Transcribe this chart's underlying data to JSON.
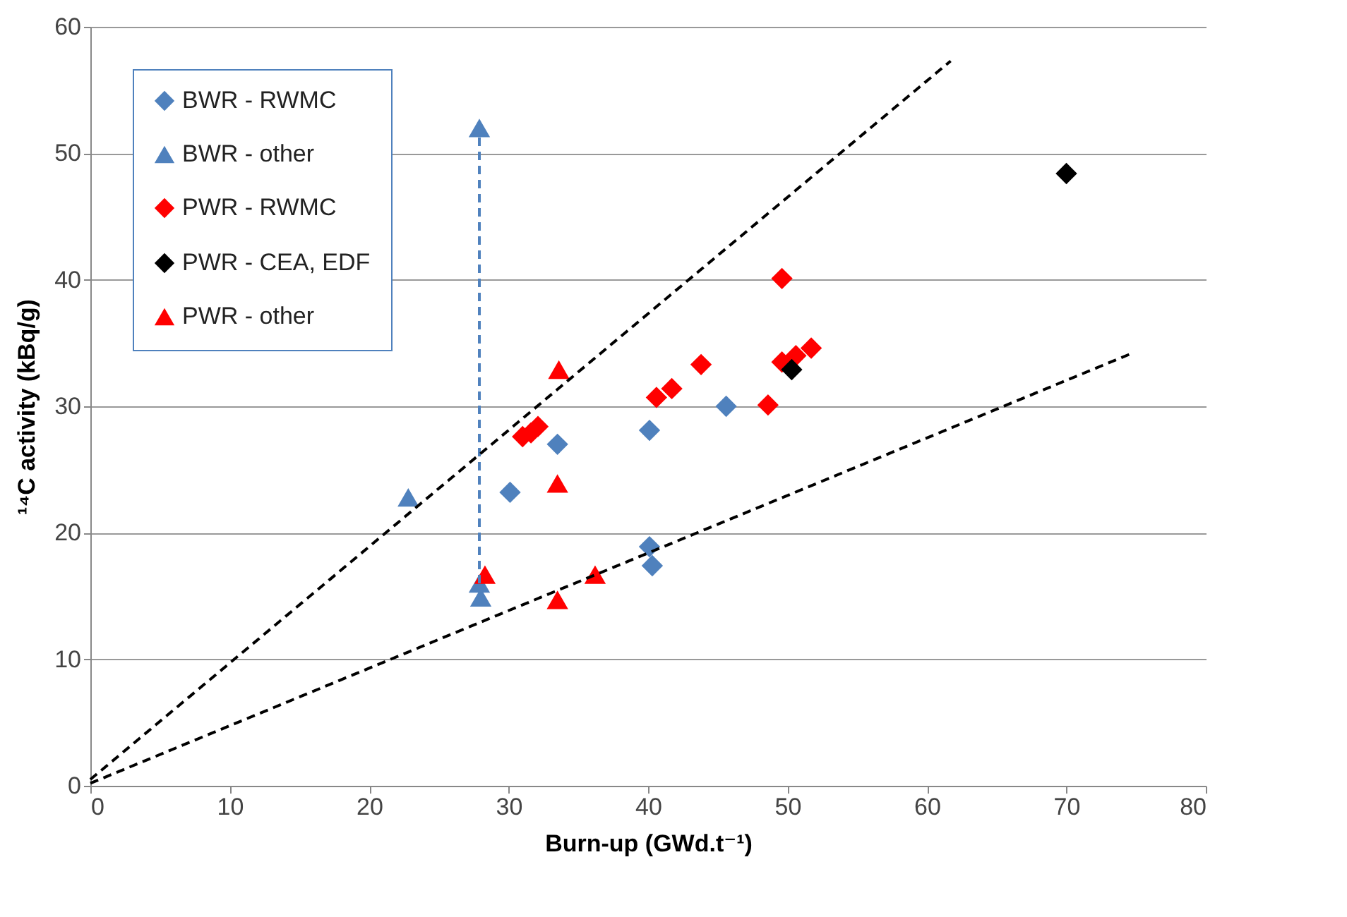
{
  "chart_data": {
    "type": "scatter",
    "xlabel": "Burn-up (GWd.t⁻¹)",
    "ylabel": "¹⁴C activity (kBq/g)",
    "xlim": [
      0,
      80
    ],
    "xticks": [
      0,
      10,
      20,
      30,
      40,
      50,
      60,
      70,
      80
    ],
    "ylim": [
      0,
      60
    ],
    "yticks": [
      0,
      10,
      20,
      30,
      40,
      50,
      60
    ],
    "grid": "y",
    "legend": "top left",
    "series": [
      {
        "name": "BWR - RWMC",
        "color": "#4f81bd",
        "marker": "diamond",
        "x": [
          30.1,
          33.5,
          40.1,
          45.6,
          40.1,
          40.3
        ],
        "values": [
          23.2,
          27.0,
          28.1,
          30.0,
          18.9,
          17.4
        ]
      },
      {
        "name": "BWR - other",
        "color": "#4f81bd",
        "marker": "triangle",
        "x": [
          22.8,
          28.0,
          27.9,
          27.9
        ],
        "values": [
          22.8,
          14.9,
          52.0,
          16.0
        ]
      },
      {
        "name": "PWR - RWMC",
        "color": "#ff0000",
        "marker": "diamond",
        "x": [
          31.0,
          31.6,
          32.1,
          40.6,
          41.7,
          43.8,
          49.6,
          48.6,
          49.6,
          50.6,
          51.7
        ],
        "values": [
          27.6,
          27.9,
          28.4,
          30.7,
          31.4,
          33.3,
          40.1,
          30.1,
          33.5,
          34.0,
          34.6
        ]
      },
      {
        "name": "PWR - CEA, EDF",
        "color": "#000000",
        "marker": "diamond",
        "x": [
          50.3,
          70.0
        ],
        "values": [
          32.9,
          48.4
        ]
      },
      {
        "name": "PWR - other",
        "color": "#ff0000",
        "marker": "triangle",
        "x": [
          28.3,
          33.5,
          33.5,
          36.2,
          33.6
        ],
        "values": [
          16.7,
          14.7,
          23.9,
          16.7,
          32.9
        ]
      },
      {
        "type": "line",
        "color": "#4f81bd",
        "line_style": "dashed",
        "x": [
          27.9,
          27.9
        ],
        "values": [
          16.0,
          52.0
        ]
      },
      {
        "type": "line",
        "color": "#000000",
        "line_style": "dashed",
        "x": [
          0,
          61.7
        ],
        "values": [
          0.5,
          57.3
        ]
      },
      {
        "type": "line",
        "color": "#000000",
        "line_style": "dashed",
        "x": [
          0,
          74.5
        ],
        "values": [
          0.2,
          34.1
        ]
      }
    ]
  }
}
